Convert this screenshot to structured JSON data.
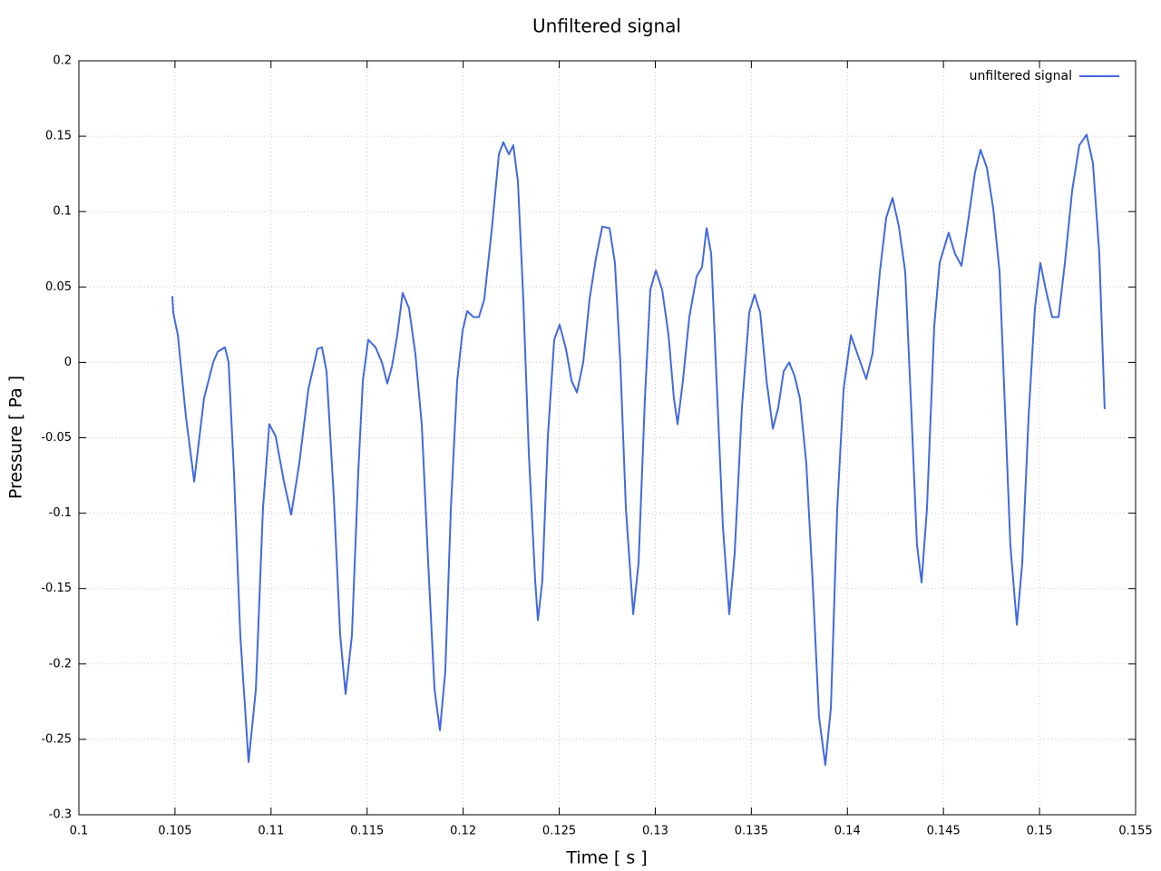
{
  "chart_data": {
    "type": "line",
    "title": "Unfiltered signal",
    "xlabel": "Time [ s ]",
    "ylabel": "Pressure [ Pa ]",
    "xlim": [
      0.1,
      0.155
    ],
    "ylim": [
      -0.3,
      0.2
    ],
    "xticks": [
      0.1,
      0.105,
      0.11,
      0.115,
      0.12,
      0.125,
      0.13,
      0.135,
      0.14,
      0.145,
      0.15,
      0.155
    ],
    "yticks": [
      0.2,
      0.15,
      0.1,
      0.05,
      0,
      -0.05,
      -0.1,
      -0.15,
      -0.2,
      -0.25,
      -0.3
    ],
    "grid": true,
    "legend": "upper right",
    "x": [
      0.10486,
      0.10491,
      0.10515,
      0.10557,
      0.106,
      0.10651,
      0.10699,
      0.10722,
      0.1076,
      0.10779,
      0.10807,
      0.1084,
      0.10883,
      0.10921,
      0.10958,
      0.10991,
      0.11024,
      0.11067,
      0.11105,
      0.11147,
      0.11194,
      0.11242,
      0.11265,
      0.11289,
      0.11327,
      0.1136,
      0.11388,
      0.11421,
      0.11454,
      0.11478,
      0.11506,
      0.11544,
      0.11577,
      0.11605,
      0.11629,
      0.11657,
      0.11685,
      0.11718,
      0.11751,
      0.11785,
      0.11818,
      0.11851,
      0.11879,
      0.11907,
      0.11936,
      0.11969,
      0.11997,
      0.12021,
      0.12054,
      0.12082,
      0.1211,
      0.12148,
      0.12186,
      0.12209,
      0.12238,
      0.12261,
      0.12285,
      0.12313,
      0.12342,
      0.12375,
      0.12389,
      0.12412,
      0.12441,
      0.12474,
      0.12502,
      0.12535,
      0.12564,
      0.12592,
      0.12625,
      0.12658,
      0.12691,
      0.12724,
      0.12762,
      0.1279,
      0.12818,
      0.12847,
      0.12885,
      0.12913,
      0.12946,
      0.12974,
      0.13003,
      0.13036,
      0.13069,
      0.13097,
      0.13116,
      0.13144,
      0.13177,
      0.13215,
      0.13243,
      0.13267,
      0.13291,
      0.13319,
      0.13352,
      0.13385,
      0.13413,
      0.13451,
      0.13489,
      0.13517,
      0.13546,
      0.13579,
      0.13612,
      0.1364,
      0.13668,
      0.13697,
      0.13725,
      0.13753,
      0.13786,
      0.13819,
      0.13852,
      0.13885,
      0.13914,
      0.13947,
      0.1398,
      0.14018,
      0.14051,
      0.14098,
      0.14131,
      0.14169,
      0.14202,
      0.14235,
      0.14268,
      0.14301,
      0.14334,
      0.14362,
      0.14386,
      0.14414,
      0.14452,
      0.1448,
      0.14527,
      0.1456,
      0.14594,
      0.14631,
      0.14664,
      0.14693,
      0.14726,
      0.14759,
      0.14792,
      0.1482,
      0.14848,
      0.14882,
      0.1491,
      0.14943,
      0.14976,
      0.15004,
      0.15033,
      0.15066,
      0.15099,
      0.15132,
      0.1517,
      0.15207,
      0.15245,
      0.15278,
      0.15311,
      0.15339
    ],
    "series": [
      {
        "name": "unfiltered signal",
        "color": "#4169e1",
        "values": [
          0.044,
          0.033,
          0.018,
          -0.036,
          -0.079,
          -0.024,
          0.0,
          0.007,
          0.01,
          0,
          -0.073,
          -0.181,
          -0.265,
          -0.217,
          -0.097,
          -0.041,
          -0.049,
          -0.079,
          -0.101,
          -0.067,
          -0.018,
          0.009,
          0.01,
          -0.006,
          -0.09,
          -0.181,
          -0.22,
          -0.181,
          -0.073,
          -0.012,
          0.015,
          0.01,
          0,
          -0.014,
          -0.003,
          0.018,
          0.046,
          0.036,
          0.006,
          -0.042,
          -0.133,
          -0.217,
          -0.244,
          -0.205,
          -0.097,
          -0.012,
          0.021,
          0.034,
          0.03,
          0.03,
          0.042,
          0.087,
          0.138,
          0.146,
          0.138,
          0.144,
          0.12,
          0.042,
          -0.061,
          -0.145,
          -0.171,
          -0.145,
          -0.049,
          0.015,
          0.025,
          0.009,
          -0.012,
          -0.02,
          0,
          0.042,
          0.069,
          0.09,
          0.089,
          0.066,
          0,
          -0.097,
          -0.167,
          -0.133,
          -0.024,
          0.048,
          0.061,
          0.048,
          0.018,
          -0.024,
          -0.041,
          -0.012,
          0.03,
          0.057,
          0.063,
          0.089,
          0.072,
          -0.012,
          -0.109,
          -0.167,
          -0.127,
          -0.03,
          0.033,
          0.045,
          0.033,
          -0.012,
          -0.044,
          -0.03,
          -0.006,
          0,
          -0.009,
          -0.024,
          -0.067,
          -0.145,
          -0.235,
          -0.267,
          -0.229,
          -0.097,
          -0.018,
          0.018,
          0.006,
          -0.011,
          0.006,
          0.06,
          0.096,
          0.109,
          0.09,
          0.06,
          -0.036,
          -0.121,
          -0.146,
          -0.097,
          0.024,
          0.066,
          0.086,
          0.072,
          0.064,
          0.096,
          0.126,
          0.141,
          0.129,
          0.102,
          0.06,
          -0.03,
          -0.121,
          -0.174,
          -0.133,
          -0.036,
          0.036,
          0.066,
          0.048,
          0.03,
          0.03,
          0.066,
          0.114,
          0.144,
          0.151,
          0.132,
          0.072,
          -0.031
        ]
      }
    ]
  }
}
